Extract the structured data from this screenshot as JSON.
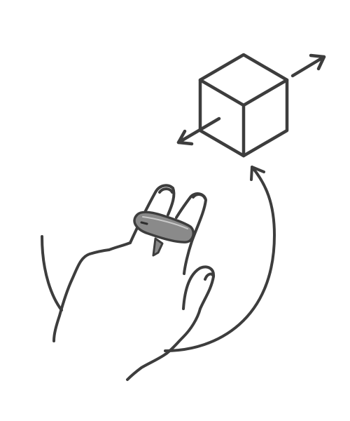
{
  "illustration": {
    "icons": [
      "cube-icon",
      "move-arrows-icon",
      "rotation-arc-arrow-icon",
      "hand-icon",
      "finger-ring-controller-icon"
    ],
    "colors": {
      "background": "#ffffff",
      "line": "#3d3d3d",
      "ring_body": "#8a8a8a",
      "ring_highlight": "#c9c9c9"
    }
  }
}
